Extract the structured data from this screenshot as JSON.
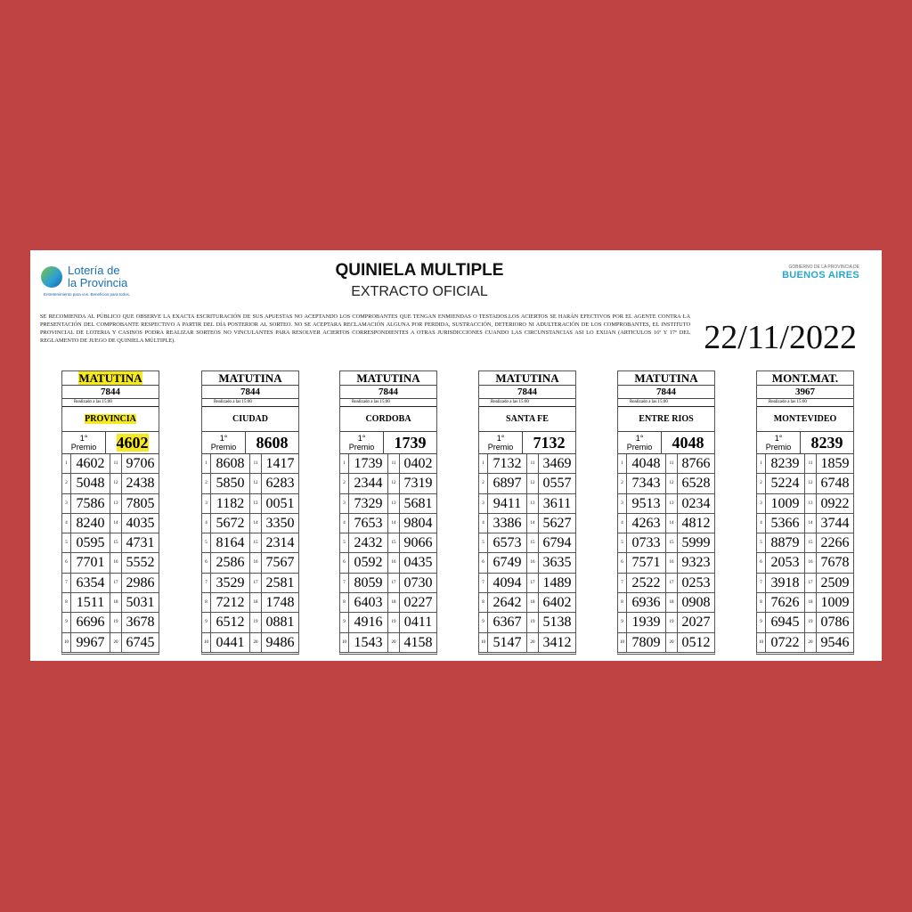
{
  "header": {
    "logo_line1": "Lotería de",
    "logo_line2": "la Provincia",
    "logo_tagline": "Entretenimiento para vos. Beneficios para todos.",
    "title": "QUINIELA MULTIPLE",
    "subtitle": "EXTRACTO OFICIAL",
    "gov_small": "GOBIERNO DE LA PROVINCIA DE",
    "gov_big": "BUENOS AIRES",
    "notice": "SE RECOMIENDA AL PÚBLICO QUE OBSERVE LA EXACTA ESCRITURACIÓN DE SUS APUESTAS NO ACEPTANDO LOS COMPROBANTES QUE TENGAN ENMIENDAS O TESTADOS.LOS ACIERTOS SE HARÁN EFECTIVOS POR EL AGENTE CONTRA LA PRESENTACIÓN DEL COMPROBANTE RESPECTIVO A PARTIR DEL DÍA POSTERIOR AL SORTEO. NO SE ACEPTARA RECLAMACIÓN ALGUNA POR PERDIDA, SUSTRACCIÓN, DETERIORO NI ADULTERACIÓN DE LOS COMPROBANTES, EL INSTITUTO PROVINCIAL DE LOTERIA Y CASINOS PODRA REALIZAR SORTEOS NO VINCULANTES PARA RESOLVER ACIERTOS CORRESPONDIENTES A OTRAS JURISDICCIONES CUANDO LAS CIRCUNSTANCIAS ASI LO EXIJAN (ARTICULOS 16º Y 17º DEL REGLAMENTO DE JUEGO DE QUINIELA MÚLTIPLE).",
    "date": "22/11/2022"
  },
  "colors": {
    "background": "#bf4343",
    "highlight": "#f7ea1c",
    "brand_blue": "#1b6fb5",
    "gov_cyan": "#2aa6c9"
  },
  "premio_label_1": "1°",
  "premio_label_2": "Premio",
  "realizado_label": "Realizado a las  15:00",
  "draws": [
    {
      "shift": "MATUTINA",
      "draw_number": "7844",
      "jurisdiction": "PROVINCIA",
      "first_prize": "4602",
      "highlighted": true,
      "numbers": [
        "4602",
        "5048",
        "7586",
        "8240",
        "0595",
        "7701",
        "6354",
        "1511",
        "6696",
        "9967",
        "9706",
        "2438",
        "7805",
        "4035",
        "4731",
        "5552",
        "2986",
        "5031",
        "3678",
        "6745"
      ]
    },
    {
      "shift": "MATUTINA",
      "draw_number": "7844",
      "jurisdiction": "CIUDAD",
      "first_prize": "8608",
      "highlighted": false,
      "numbers": [
        "8608",
        "5850",
        "1182",
        "5672",
        "8164",
        "2586",
        "3529",
        "7212",
        "6512",
        "0441",
        "1417",
        "6283",
        "0051",
        "3350",
        "2314",
        "7567",
        "2581",
        "1748",
        "0881",
        "9486"
      ]
    },
    {
      "shift": "MATUTINA",
      "draw_number": "7844",
      "jurisdiction": "CORDOBA",
      "first_prize": "1739",
      "highlighted": false,
      "numbers": [
        "1739",
        "2344",
        "7329",
        "7653",
        "2432",
        "0592",
        "8059",
        "6403",
        "4916",
        "1543",
        "0402",
        "7319",
        "5681",
        "9804",
        "9066",
        "0435",
        "0730",
        "0227",
        "0411",
        "4158"
      ]
    },
    {
      "shift": "MATUTINA",
      "draw_number": "7844",
      "jurisdiction": "SANTA FE",
      "first_prize": "7132",
      "highlighted": false,
      "numbers": [
        "7132",
        "6897",
        "9411",
        "3386",
        "6573",
        "6749",
        "4094",
        "2642",
        "6367",
        "5147",
        "3469",
        "0557",
        "3611",
        "5627",
        "6794",
        "3635",
        "1489",
        "6402",
        "5138",
        "3412"
      ]
    },
    {
      "shift": "MATUTINA",
      "draw_number": "7844",
      "jurisdiction": "ENTRE RIOS",
      "first_prize": "4048",
      "highlighted": false,
      "numbers": [
        "4048",
        "7343",
        "9513",
        "4263",
        "0733",
        "7571",
        "2522",
        "6936",
        "1939",
        "7809",
        "8766",
        "6528",
        "0234",
        "4812",
        "5999",
        "9323",
        "0253",
        "0908",
        "2027",
        "0512"
      ]
    },
    {
      "shift": "MONT.MAT.",
      "draw_number": "3967",
      "jurisdiction": "MONTEVIDEO",
      "first_prize": "8239",
      "highlighted": false,
      "numbers": [
        "8239",
        "5224",
        "1009",
        "5366",
        "8879",
        "2053",
        "3918",
        "7626",
        "6945",
        "0722",
        "1859",
        "6748",
        "0922",
        "3744",
        "2266",
        "7678",
        "2509",
        "1009",
        "0786",
        "9546"
      ]
    }
  ]
}
